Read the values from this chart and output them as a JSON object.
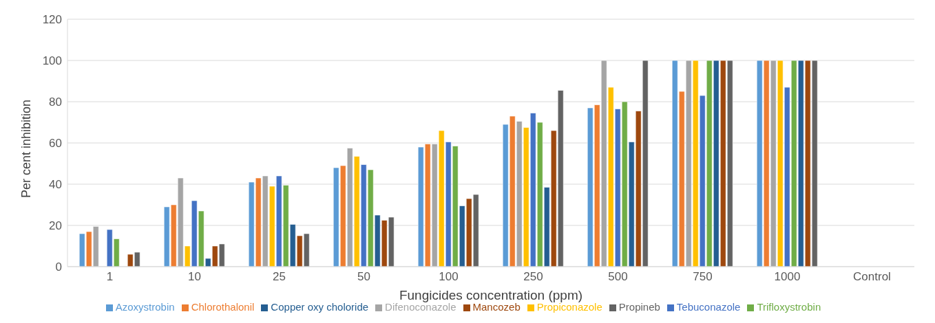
{
  "chart_data": {
    "type": "bar",
    "xlabel": "Fungicides concentration (ppm)",
    "ylabel": "Per cent inhibition",
    "categories": [
      "1",
      "10",
      "25",
      "50",
      "100",
      "250",
      "500",
      "750",
      "1000",
      "Control"
    ],
    "series": [
      {
        "name": "Azoxystrobin",
        "color": "#5b9bd5",
        "values": [
          16,
          29,
          41,
          48,
          58,
          69,
          77,
          100,
          100,
          0
        ]
      },
      {
        "name": "Chlorothalonil",
        "color": "#ed7d31",
        "values": [
          17,
          30,
          43,
          49,
          59.5,
          73,
          78.5,
          85,
          100,
          0
        ]
      },
      {
        "name": "Difenoconazole",
        "color": "#a5a5a5",
        "values": [
          19.5,
          43,
          44,
          57.5,
          59.5,
          70.5,
          100,
          100,
          100,
          0
        ]
      },
      {
        "name": "Propiconazole",
        "color": "#ffc000",
        "values": [
          0,
          10,
          39,
          53.5,
          66,
          67.5,
          87,
          100,
          100,
          0
        ]
      },
      {
        "name": "Tebuconazole",
        "color": "#4472c4",
        "values": [
          18,
          32,
          44,
          49.5,
          60.5,
          74.5,
          76.5,
          83,
          87,
          0
        ]
      },
      {
        "name": "Trifloxystrobin",
        "color": "#70ad47",
        "values": [
          13.5,
          27,
          39.5,
          47,
          58.5,
          70,
          80,
          100,
          100,
          0
        ]
      },
      {
        "name": "Copper oxy choloride",
        "color": "#255e91",
        "values": [
          0,
          4,
          20.5,
          25,
          29.5,
          38.5,
          60.5,
          100,
          100,
          0
        ]
      },
      {
        "name": "Mancozeb",
        "color": "#9e480e",
        "values": [
          6,
          10,
          15,
          22.5,
          33,
          66,
          75.5,
          100,
          100,
          0
        ]
      },
      {
        "name": "Propineb",
        "color": "#636363",
        "values": [
          7,
          11,
          16,
          24,
          35,
          85.5,
          100,
          100,
          100,
          0
        ]
      }
    ],
    "ylim": [
      0,
      120
    ],
    "yticks": [
      0,
      20,
      40,
      60,
      80,
      100,
      120
    ],
    "grid": "y",
    "legend": "bottom"
  }
}
